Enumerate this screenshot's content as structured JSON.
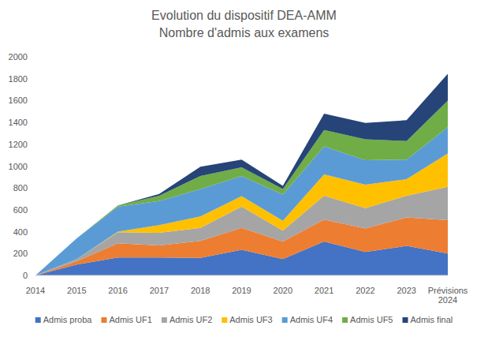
{
  "chart_data": {
    "type": "area",
    "title": "Evolution du dispositif DEA-AMM",
    "subtitle": "Nombre d'admis aux examens",
    "categories": [
      "2014",
      "2015",
      "2016",
      "2017",
      "2018",
      "2019",
      "2020",
      "2021",
      "2022",
      "2023",
      "Prévisions 2024"
    ],
    "stacked": true,
    "grid": false,
    "legend": "bottom",
    "ylim": [
      0,
      2000
    ],
    "yticks": [
      0,
      200,
      400,
      600,
      800,
      1000,
      1200,
      1400,
      1600,
      1800,
      2000
    ],
    "series": [
      {
        "name": "Admis proba",
        "color": "#4472c4",
        "values": [
          0,
          100,
          165,
          165,
          160,
          235,
          150,
          310,
          215,
          270,
          200
        ]
      },
      {
        "name": "Admis UF1",
        "color": "#ed7d31",
        "values": [
          0,
          30,
          130,
          110,
          155,
          200,
          160,
          200,
          215,
          260,
          305
        ]
      },
      {
        "name": "Admis UF2",
        "color": "#a5a5a5",
        "values": [
          0,
          20,
          100,
          115,
          120,
          195,
          100,
          220,
          185,
          200,
          305
        ]
      },
      {
        "name": "Admis UF3",
        "color": "#ffc000",
        "values": [
          0,
          0,
          5,
          70,
          105,
          95,
          90,
          195,
          215,
          150,
          305
        ]
      },
      {
        "name": "Admis UF4",
        "color": "#5b9bd5",
        "values": [
          0,
          190,
          230,
          220,
          250,
          185,
          240,
          255,
          225,
          180,
          240
        ]
      },
      {
        "name": "Admis UF5",
        "color": "#70ad47",
        "values": [
          0,
          0,
          10,
          50,
          120,
          80,
          50,
          150,
          190,
          170,
          245
        ]
      },
      {
        "name": "Admis final",
        "color": "#264478",
        "values": [
          0,
          0,
          0,
          15,
          85,
          70,
          30,
          150,
          150,
          190,
          245
        ]
      }
    ]
  }
}
